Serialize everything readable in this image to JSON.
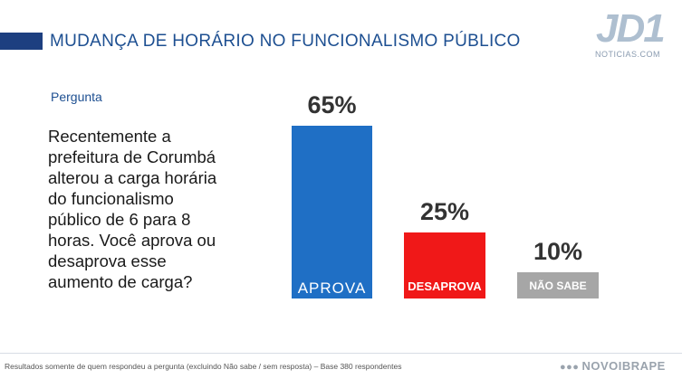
{
  "header": {
    "title": "MUDANÇA DE HORÁRIO NO FUNCIONALISMO PÚBLICO"
  },
  "logo": {
    "text": "JD1",
    "subtext": "NOTICIAS.COM"
  },
  "question": {
    "tag": "Pergunta",
    "text": "Recentemente a prefeitura de Corumbá alterou a carga horária do funcionalismo público de 6 para 8 horas. Você aprova ou desaprova esse aumento de carga?"
  },
  "colors": {
    "aprova": "#1f6fc5",
    "desaprova": "#f01818",
    "nao_sabe": "#a6a6a6"
  },
  "chart_data": {
    "type": "bar",
    "title": "MUDANÇA DE HORÁRIO NO FUNCIONALISMO PÚBLICO",
    "categories": [
      "APROVA",
      "DESAPROVA",
      "NÃO SABE"
    ],
    "values": [
      65,
      25,
      10
    ],
    "value_labels": [
      "65%",
      "25%",
      "10%"
    ],
    "ylim": [
      0,
      65
    ],
    "unit": "%"
  },
  "footer": {
    "note": "Resultados somente de quem respondeu a pergunta (excluindo Não sabe / sem resposta) – Base 380 respondentes",
    "brand": "NOVOIBRAPE"
  }
}
